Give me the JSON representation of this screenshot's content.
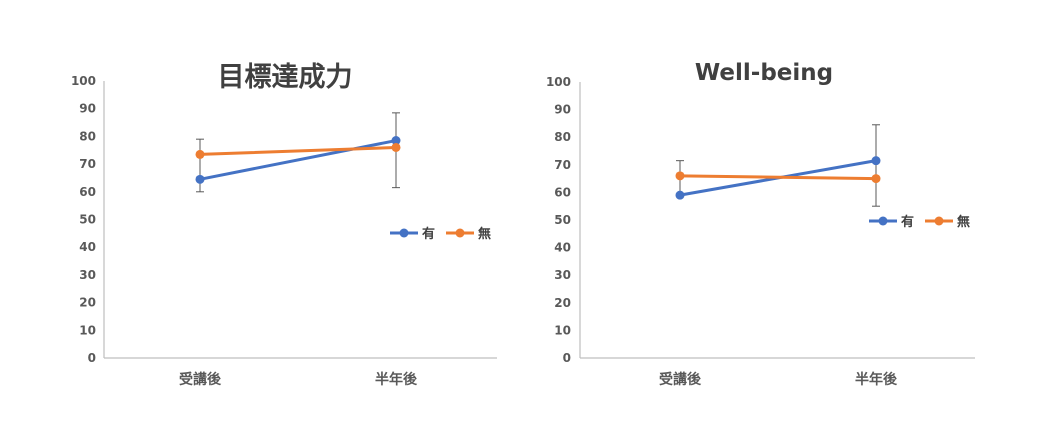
{
  "chart_data": [
    {
      "type": "line",
      "title": "目標達成力",
      "categories": [
        "受講後",
        "半年後"
      ],
      "ylim": [
        0,
        100
      ],
      "yticks": [
        0,
        10,
        20,
        30,
        40,
        50,
        60,
        70,
        80,
        90,
        100
      ],
      "grid": false,
      "legend_position": "right",
      "series": [
        {
          "name": "有",
          "color": "#4472C4",
          "values": [
            64.5,
            78.5
          ],
          "error_low": [
            60,
            61.5
          ],
          "error_high": [
            79,
            88.5
          ]
        },
        {
          "name": "無",
          "color": "#ED7D31",
          "values": [
            73.5,
            76
          ],
          "error_low": [
            null,
            null
          ],
          "error_high": [
            null,
            null
          ]
        }
      ]
    },
    {
      "type": "line",
      "title": "Well-being",
      "categories": [
        "受講後",
        "半年後"
      ],
      "ylim": [
        0,
        100
      ],
      "yticks": [
        0,
        10,
        20,
        30,
        40,
        50,
        60,
        70,
        80,
        90,
        100
      ],
      "grid": false,
      "legend_position": "right",
      "series": [
        {
          "name": "有",
          "color": "#4472C4",
          "values": [
            59,
            71.5
          ],
          "error_low": [
            null,
            55
          ],
          "error_high": [
            71.5,
            84.5
          ]
        },
        {
          "name": "無",
          "color": "#ED7D31",
          "values": [
            66,
            65
          ],
          "error_low": [
            null,
            null
          ],
          "error_high": [
            null,
            null
          ]
        }
      ]
    }
  ]
}
